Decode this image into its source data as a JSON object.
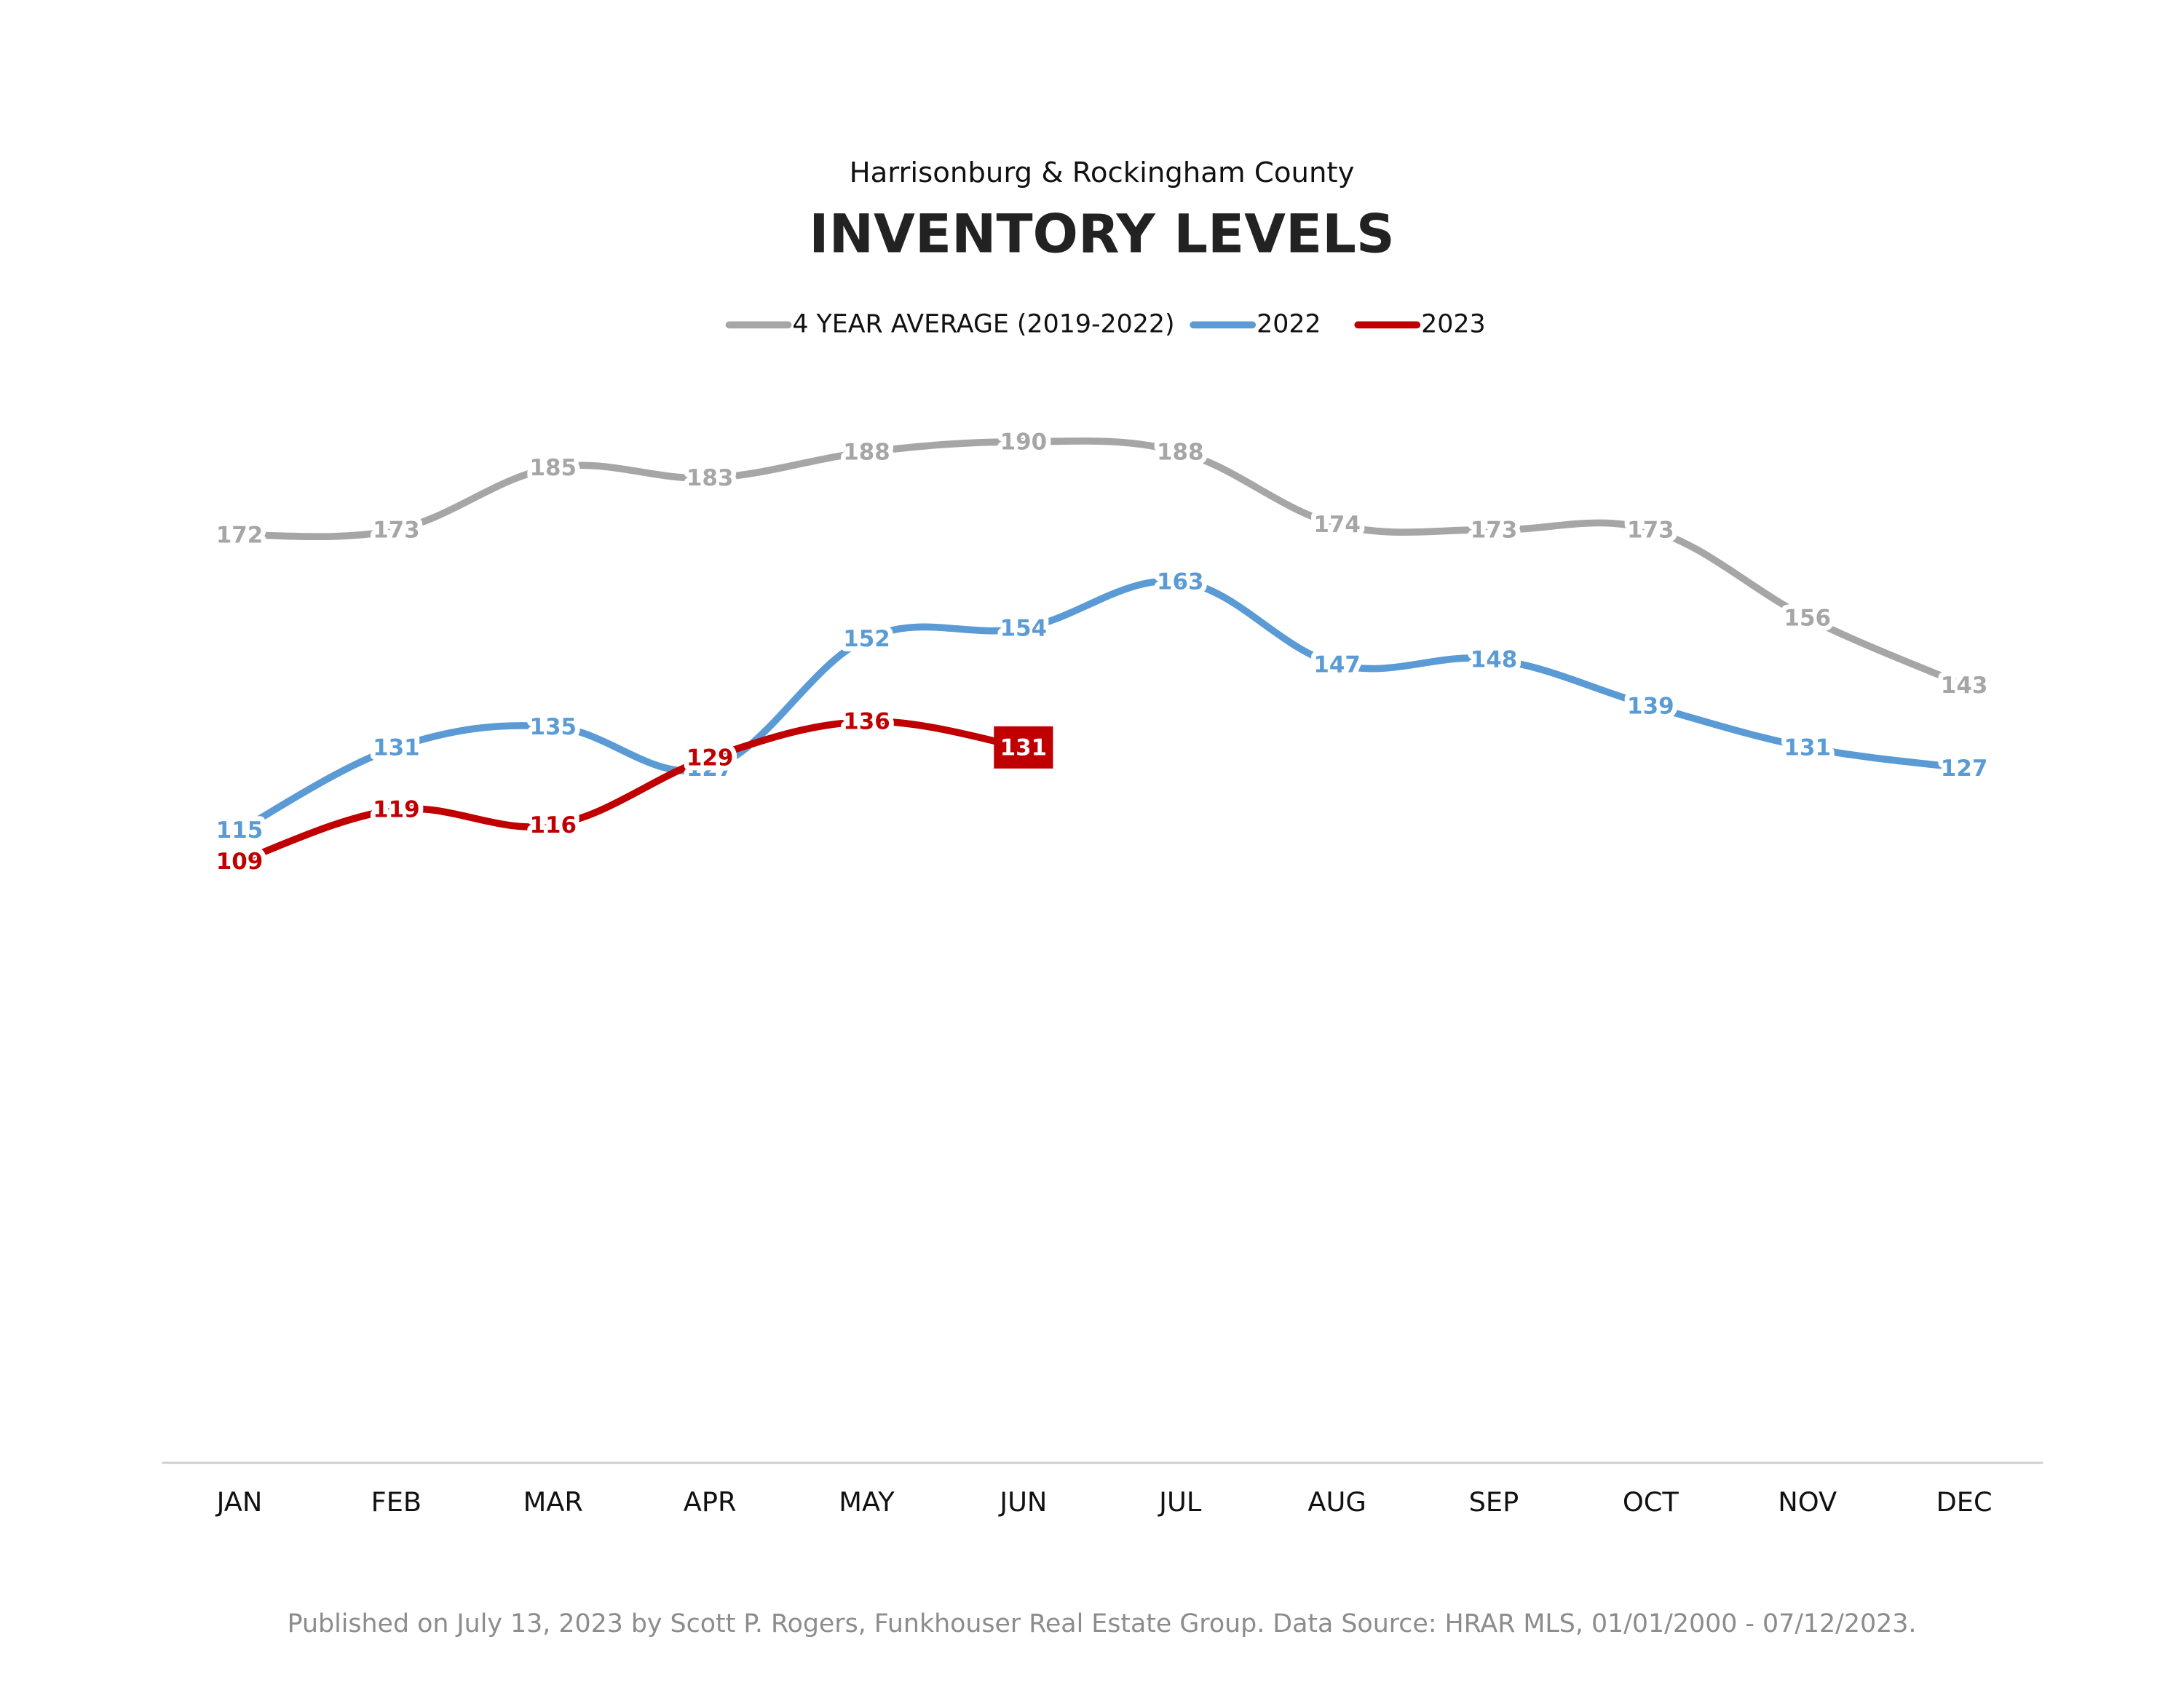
{
  "chart_data": {
    "type": "line",
    "subtitle": "Harrisonburg & Rockingham County",
    "title": "INVENTORY LEVELS",
    "categories": [
      "JAN",
      "FEB",
      "MAR",
      "APR",
      "MAY",
      "JUN",
      "JUL",
      "AUG",
      "SEP",
      "OCT",
      "NOV",
      "DEC"
    ],
    "series": [
      {
        "name": "4 YEAR AVERAGE (2019-2022)",
        "color": "#a6a6a6",
        "values": [
          172,
          173,
          185,
          183,
          188,
          190,
          188,
          174,
          173,
          173,
          156,
          143
        ]
      },
      {
        "name": "2022",
        "color": "#5b9bd5",
        "values": [
          115,
          131,
          135,
          127,
          152,
          154,
          163,
          147,
          148,
          139,
          131,
          127
        ]
      },
      {
        "name": "2023",
        "color": "#c00000",
        "values": [
          109,
          119,
          116,
          129,
          136,
          131,
          null,
          null,
          null,
          null,
          null,
          null
        ]
      }
    ],
    "ylim": [
      0,
      250
    ],
    "legend": "top",
    "footnote": "Published on July 13, 2023 by Scott P. Rogers, Funkhouser Real Estate Group. Data Source: HRAR MLS, 01/01/2000 - 07/12/2023."
  }
}
